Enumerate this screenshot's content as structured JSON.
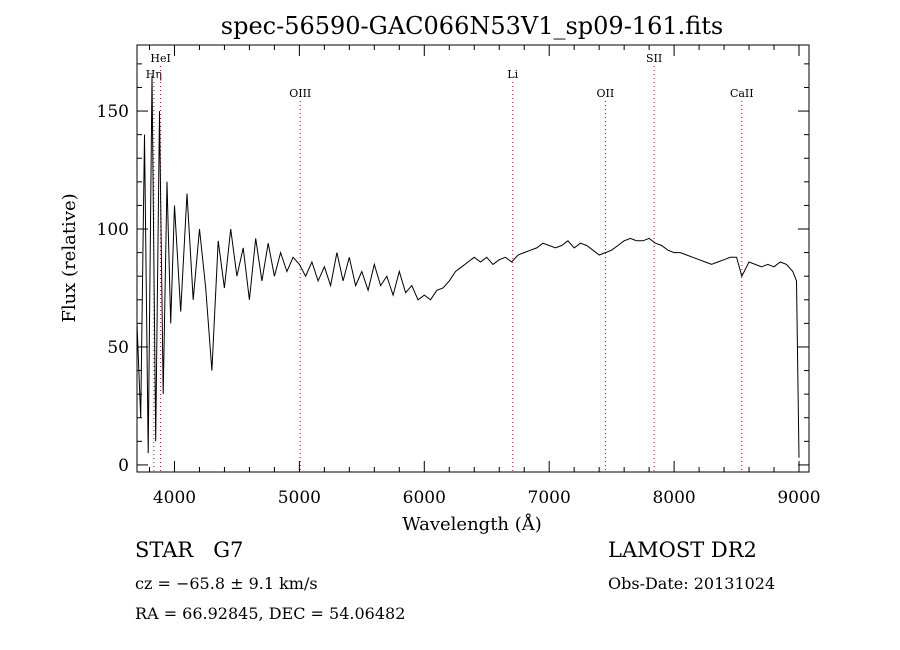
{
  "chart_data": {
    "type": "line",
    "title": "spec-56590-GAC066N53V1_sp09-161.fits",
    "xlabel": "Wavelength (Å)",
    "ylabel": "Flux (relative)",
    "xlim": [
      3700,
      9080
    ],
    "ylim": [
      -3,
      178
    ],
    "x_ticks": [
      4000,
      5000,
      6000,
      7000,
      8000,
      9000
    ],
    "y_ticks": [
      0,
      50,
      100,
      150
    ],
    "x_tick_labels": [
      "4000",
      "5000",
      "6000",
      "7000",
      "8000",
      "9000"
    ],
    "y_tick_labels": [
      "0",
      "50",
      "100",
      "150"
    ],
    "grid": false,
    "line_color": "#000000",
    "marker_color": "#cc0000",
    "spectral_lines": [
      {
        "label": "Hη",
        "x": 3835,
        "row": 1
      },
      {
        "label": "HeI",
        "x": 3889,
        "row": 0
      },
      {
        "label": "OIII",
        "x": 5007,
        "row": 2
      },
      {
        "label": "Li",
        "x": 6708,
        "row": 1
      },
      {
        "label": "OII",
        "x": 7450,
        "row": 2
      },
      {
        "label": "SII",
        "x": 7840,
        "row": 0
      },
      {
        "label": "CaII",
        "x": 8542,
        "row": 2
      }
    ],
    "series": [
      {
        "x": [
          3700,
          3730,
          3760,
          3790,
          3820,
          3850,
          3880,
          3910,
          3940,
          3970,
          4000,
          4050,
          4100,
          4150,
          4200,
          4250,
          4300,
          4350,
          4400,
          4450,
          4500,
          4550,
          4600,
          4650,
          4700,
          4750,
          4800,
          4850,
          4900,
          4950,
          5000,
          5050,
          5100,
          5150,
          5200,
          5250,
          5300,
          5350,
          5400,
          5450,
          5500,
          5550,
          5600,
          5650,
          5700,
          5750,
          5800,
          5850,
          5900,
          5950,
          6000,
          6050,
          6100,
          6150,
          6200,
          6250,
          6300,
          6350,
          6400,
          6450,
          6500,
          6550,
          6600,
          6650,
          6700,
          6750,
          6800,
          6850,
          6900,
          6950,
          7000,
          7050,
          7100,
          7150,
          7200,
          7250,
          7300,
          7350,
          7400,
          7450,
          7500,
          7550,
          7600,
          7650,
          7700,
          7750,
          7800,
          7850,
          7900,
          7950,
          8000,
          8050,
          8100,
          8150,
          8200,
          8250,
          8300,
          8350,
          8400,
          8450,
          8500,
          8542,
          8600,
          8650,
          8700,
          8750,
          8800,
          8850,
          8900,
          8950,
          8980,
          9000
        ],
        "y": [
          60,
          20,
          140,
          5,
          165,
          10,
          150,
          30,
          120,
          60,
          110,
          65,
          115,
          70,
          100,
          75,
          40,
          95,
          75,
          100,
          80,
          92,
          70,
          96,
          78,
          94,
          80,
          90,
          82,
          88,
          85,
          80,
          86,
          78,
          84,
          76,
          90,
          78,
          88,
          76,
          82,
          74,
          85,
          76,
          80,
          72,
          82,
          73,
          76,
          70,
          72,
          70,
          74,
          75,
          78,
          82,
          84,
          86,
          88,
          86,
          88,
          85,
          87,
          88,
          86,
          89,
          90,
          91,
          92,
          94,
          93,
          92,
          93,
          95,
          92,
          94,
          93,
          91,
          89,
          90,
          91,
          93,
          95,
          96,
          95,
          95,
          96,
          94,
          93,
          91,
          90,
          90,
          89,
          88,
          87,
          86,
          85,
          86,
          87,
          88,
          88,
          80,
          86,
          85,
          84,
          85,
          84,
          86,
          85,
          82,
          78,
          3
        ]
      }
    ]
  },
  "meta": {
    "star_type": "STAR",
    "subclass": "G7",
    "survey": "LAMOST DR2",
    "cz": "cz = −65.8 ± 9.1 km/s",
    "obs_date": "Obs-Date: 20131024",
    "radec": "RA =  66.92845, DEC =  54.06482"
  }
}
